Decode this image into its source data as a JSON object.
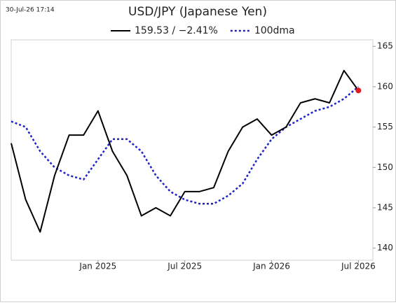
{
  "chart_data": {
    "type": "line",
    "title": "USD/JPY (Japanese Yen)",
    "timestamp": "30-Jul-26 17:14",
    "x": [
      "2024-07",
      "2024-08",
      "2024-09",
      "2024-10",
      "2024-11",
      "2024-12",
      "2025-01",
      "2025-02",
      "2025-03",
      "2025-04",
      "2025-05",
      "2025-06",
      "2025-07",
      "2025-08",
      "2025-09",
      "2025-10",
      "2025-11",
      "2025-12",
      "2026-01",
      "2026-02",
      "2026-03",
      "2026-04",
      "2026-05",
      "2026-06",
      "2026-07"
    ],
    "series": [
      {
        "name": "159.53 / −2.41%",
        "color": "#000000",
        "style": "solid",
        "values": [
          153,
          146,
          142,
          149,
          154,
          154,
          157,
          152,
          149,
          144,
          145,
          144,
          147,
          147,
          147.5,
          152,
          155,
          156,
          154,
          155,
          158,
          158.5,
          158,
          162,
          159.53
        ]
      },
      {
        "name": "100dma",
        "color": "#1f22c8",
        "style": "dotted",
        "values": [
          155.7,
          155,
          152,
          150,
          149,
          148.5,
          151,
          153.5,
          153.5,
          152,
          149,
          147,
          146,
          145.5,
          145.5,
          146.5,
          148,
          151,
          153.5,
          155,
          156,
          157,
          157.5,
          158.5,
          160
        ]
      }
    ],
    "last_point_color": "#e0191e",
    "xlim": [
      "2024-07",
      "2026-08"
    ],
    "xticks": [
      {
        "value": "2025-01",
        "label": "Jan 2025"
      },
      {
        "value": "2025-07",
        "label": "Jul 2025"
      },
      {
        "value": "2026-01",
        "label": "Jan 2026"
      },
      {
        "value": "2026-07",
        "label": "Jul 2026"
      }
    ],
    "ylim": [
      138.5,
      165.8
    ],
    "yticks": [
      140,
      145,
      150,
      155,
      160,
      165
    ]
  }
}
